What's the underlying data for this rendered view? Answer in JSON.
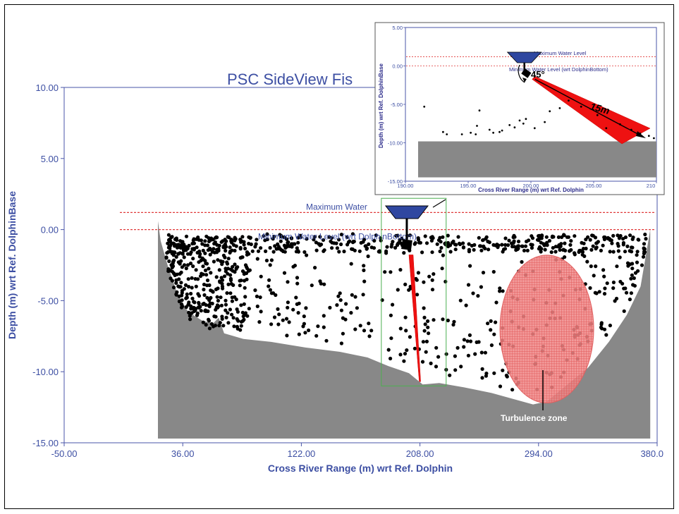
{
  "colors": {
    "axis": "#4a55a8",
    "riverbed": "#888888",
    "water_level": "#e03a3a",
    "beam": "#ee1111",
    "turbulence": "#f08a8a",
    "transducer": "#2f47a0",
    "fish": "#000000",
    "box": "#4caf50"
  },
  "chart_data": [
    {
      "type": "scatter",
      "title": "PSC SideView Fis",
      "xlabel": "Cross River Range (m) wrt Ref. Dolphin",
      "ylabel": "Depth (m) wrt Ref. DolphinBase",
      "xlim": [
        -50,
        380
      ],
      "ylim": [
        -15,
        10
      ],
      "x_ticks": [
        "-50.00",
        "36.00",
        "122.00",
        "208.00",
        "294.00",
        "380.0"
      ],
      "y_ticks": [
        "10.00",
        "5.00",
        "0.00",
        "-5.00",
        "-10.00",
        "-15.00"
      ],
      "grid": false,
      "lines": [
        {
          "label": "Maximum Water",
          "y": 1.2
        },
        {
          "label": "Minimum Water Level (wrt DolphinBottom)",
          "y": 0.0
        }
      ],
      "riverbed_profile": [
        [
          18,
          0.6
        ],
        [
          20,
          -0.8
        ],
        [
          25,
          -2.5
        ],
        [
          32,
          -4.5
        ],
        [
          40,
          -5.8
        ],
        [
          50,
          -6.4
        ],
        [
          58,
          -6.6
        ],
        [
          62,
          -6.2
        ],
        [
          66,
          -7.3
        ],
        [
          80,
          -7.7
        ],
        [
          100,
          -7.9
        ],
        [
          125,
          -8.3
        ],
        [
          150,
          -8.6
        ],
        [
          170,
          -9.0
        ],
        [
          185,
          -9.6
        ],
        [
          200,
          -10.1
        ],
        [
          210,
          -10.9
        ],
        [
          222,
          -10.8
        ],
        [
          240,
          -11.1
        ],
        [
          260,
          -11.5
        ],
        [
          275,
          -11.9
        ],
        [
          290,
          -12.3
        ],
        [
          300,
          -12.1
        ],
        [
          315,
          -10.9
        ],
        [
          330,
          -9.7
        ],
        [
          345,
          -7.9
        ],
        [
          358,
          -6.0
        ],
        [
          368,
          -4.0
        ],
        [
          372,
          -1.7
        ],
        [
          375,
          0.0
        ]
      ],
      "fish_targets": {
        "shape": "dense scatter across water column",
        "x_range": [
          20,
          375
        ],
        "y_range": [
          -11,
          0
        ]
      },
      "transducer": {
        "x": 200,
        "y": 1.0
      },
      "beam_end": {
        "x": 208,
        "y": -10.7
      },
      "zoom_box": {
        "x": [
          180,
          227
        ],
        "y": [
          -11.0,
          2.2
        ]
      },
      "turbulence_zone": {
        "label": "Turbulence zone",
        "cx": 300,
        "cy": -7.0,
        "rx": 34,
        "ry": 5.2
      }
    },
    {
      "type": "scatter",
      "title": "",
      "xlabel": "Cross River Range (m) wrt Ref. Dolphin",
      "ylabel": "Depth (m) wrt Ref. DolphinBase",
      "xlim": [
        190,
        210
      ],
      "ylim": [
        -15,
        5
      ],
      "x_ticks": [
        "190.00",
        "195.00",
        "200.00",
        "205.00",
        "210"
      ],
      "y_ticks": [
        "5.00",
        "0.00",
        "-5.00",
        "-10.00",
        "-15.00"
      ],
      "lines": [
        {
          "label": "Maximum Water Level",
          "y": 1.2
        },
        {
          "label": "Minimum Water Level (wrt DolphinBottom)",
          "y": 0.0
        }
      ],
      "annotations": [
        "45°",
        "15m"
      ],
      "transducer": {
        "x": 199.7,
        "y": -1.0
      },
      "beam_end": {
        "x": 209.3,
        "y": -9.7
      },
      "fish_targets": [
        [
          191.5,
          -5.3
        ],
        [
          193,
          -8.6
        ],
        [
          193.3,
          -8.9
        ],
        [
          194.5,
          -8.9
        ],
        [
          195.2,
          -8.7
        ],
        [
          195.6,
          -8.9
        ],
        [
          195.7,
          -7.8
        ],
        [
          195.9,
          -5.8
        ],
        [
          196.7,
          -8.3
        ],
        [
          197,
          -8.7
        ],
        [
          197.5,
          -8.6
        ],
        [
          197.7,
          -8.4
        ],
        [
          198.3,
          -7.7
        ],
        [
          198.7,
          -8.0
        ],
        [
          199.1,
          -7.1
        ],
        [
          199.4,
          -7.5
        ],
        [
          199.6,
          -6.9
        ],
        [
          200.3,
          -8.1
        ],
        [
          201.1,
          -7.3
        ],
        [
          201.5,
          -5.9
        ],
        [
          202.3,
          -5.5
        ],
        [
          203,
          -4.5
        ],
        [
          204,
          -5.3
        ],
        [
          205.3,
          -6.4
        ],
        [
          206,
          -8.1
        ],
        [
          207.1,
          -7.6
        ],
        [
          208,
          -8.3
        ],
        [
          208.7,
          -8.8
        ],
        [
          209.4,
          -9.1
        ],
        [
          209.8,
          -9.4
        ]
      ],
      "riverbed_level": -10.0
    }
  ]
}
